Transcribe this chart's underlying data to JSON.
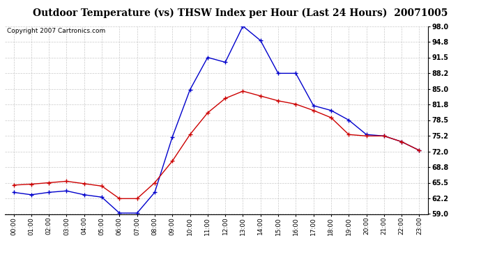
{
  "title": "Outdoor Temperature (vs) THSW Index per Hour (Last 24 Hours)  20071005",
  "copyright": "Copyright 2007 Cartronics.com",
  "hours": [
    "00:00",
    "01:00",
    "02:00",
    "03:00",
    "04:00",
    "05:00",
    "06:00",
    "07:00",
    "08:00",
    "09:00",
    "10:00",
    "11:00",
    "12:00",
    "13:00",
    "14:00",
    "15:00",
    "16:00",
    "17:00",
    "18:00",
    "19:00",
    "20:00",
    "21:00",
    "22:00",
    "23:00"
  ],
  "temp": [
    65.0,
    65.2,
    65.5,
    65.8,
    65.3,
    64.8,
    62.2,
    62.2,
    65.5,
    70.0,
    75.5,
    80.0,
    83.0,
    84.5,
    83.5,
    82.5,
    81.8,
    80.5,
    79.0,
    75.5,
    75.2,
    75.2,
    74.0,
    72.2
  ],
  "thsw": [
    63.5,
    63.0,
    63.5,
    63.8,
    63.0,
    62.5,
    59.2,
    59.2,
    63.5,
    75.0,
    84.8,
    91.5,
    90.5,
    98.0,
    95.0,
    88.2,
    88.2,
    81.5,
    80.5,
    78.5,
    75.5,
    75.2,
    74.0,
    72.2
  ],
  "ylim": [
    59.0,
    98.0
  ],
  "yticks": [
    59.0,
    62.2,
    65.5,
    68.8,
    72.0,
    75.2,
    78.5,
    81.8,
    85.0,
    88.2,
    91.5,
    94.8,
    98.0
  ],
  "temp_color": "#cc0000",
  "thsw_color": "#0000cc",
  "bg_color": "#ffffff",
  "grid_color": "#bbbbbb",
  "title_fontsize": 10,
  "copyright_fontsize": 6.5
}
